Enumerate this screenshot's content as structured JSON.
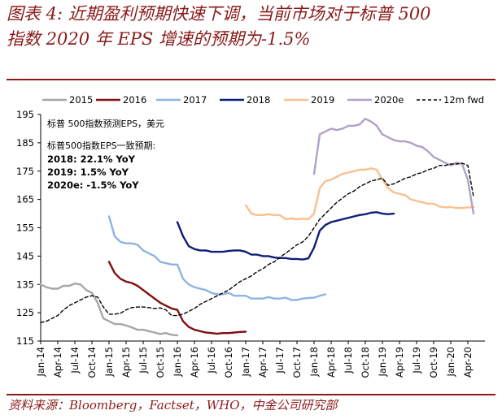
{
  "title": {
    "line1": "图表 4:  近期盈利预期快速下调，当前市场对于标普 500",
    "line2": "指数 2020 年 EPS 增速的预期为-1.5%"
  },
  "source": "资料来源：Bloomberg，Factset，WHO，中金公司研究部",
  "chart_data": {
    "type": "line",
    "title": "图表 4:  近期盈利预期快速下调，当前市场对于标普 500 指数 2020 年 EPS 增速的预期为-1.5%",
    "ylim": [
      115,
      195
    ],
    "yticks": [
      115,
      125,
      135,
      145,
      155,
      165,
      175,
      185,
      195
    ],
    "x_range_months": [
      0,
      78
    ],
    "x_ticks": [
      {
        "label": "Jan-14",
        "m": 0
      },
      {
        "label": "Apr-14",
        "m": 3
      },
      {
        "label": "Jul-14",
        "m": 6
      },
      {
        "label": "Oct-14",
        "m": 9
      },
      {
        "label": "Jan-15",
        "m": 12
      },
      {
        "label": "Apr-15",
        "m": 15
      },
      {
        "label": "Jul-15",
        "m": 18
      },
      {
        "label": "Oct-15",
        "m": 21
      },
      {
        "label": "Jan-16",
        "m": 24
      },
      {
        "label": "Apr-16",
        "m": 27
      },
      {
        "label": "Jul-16",
        "m": 30
      },
      {
        "label": "Oct-16",
        "m": 33
      },
      {
        "label": "Jan-17",
        "m": 36
      },
      {
        "label": "Apr-17",
        "m": 39
      },
      {
        "label": "Jul-17",
        "m": 42
      },
      {
        "label": "Oct-17",
        "m": 45
      },
      {
        "label": "Jan-18",
        "m": 48
      },
      {
        "label": "Apr-18",
        "m": 51
      },
      {
        "label": "Jul-18",
        "m": 54
      },
      {
        "label": "Oct-18",
        "m": 57
      },
      {
        "label": "Jan-19",
        "m": 60
      },
      {
        "label": "Apr-19",
        "m": 63
      },
      {
        "label": "Jul-19",
        "m": 66
      },
      {
        "label": "Oct-19",
        "m": 69
      },
      {
        "label": "Jan-20",
        "m": 72
      },
      {
        "label": "Apr-20",
        "m": 75
      }
    ],
    "annotations": {
      "unit_label": "标普 500指数预测EPS，美元",
      "consensus_header": "标普500指数EPS一致预期:",
      "lines": [
        "2018: 22.1% YoY",
        "2019: 1.5% YoY",
        "2020e: -1.5% YoY"
      ]
    },
    "series": [
      {
        "name": "2015",
        "color": "#A6A6A6",
        "dash": false,
        "points": [
          [
            0,
            135
          ],
          [
            1,
            134
          ],
          [
            2,
            133.5
          ],
          [
            3,
            133.5
          ],
          [
            4,
            134.5
          ],
          [
            5,
            134.5
          ],
          [
            6,
            135.3
          ],
          [
            7,
            135
          ],
          [
            8,
            133
          ],
          [
            9,
            132
          ],
          [
            10,
            128.5
          ],
          [
            11,
            123
          ],
          [
            12,
            122
          ],
          [
            13,
            121
          ],
          [
            14,
            121
          ],
          [
            15,
            120.5
          ],
          [
            16,
            119.8
          ],
          [
            17,
            119
          ],
          [
            18,
            119
          ],
          [
            19,
            118.5
          ],
          [
            20,
            118
          ],
          [
            21,
            117.5
          ],
          [
            22,
            117.8
          ],
          [
            23,
            117.2
          ],
          [
            24,
            117
          ]
        ]
      },
      {
        "name": "2016",
        "color": "#7F1010",
        "dash": false,
        "points": [
          [
            12,
            143
          ],
          [
            13,
            139
          ],
          [
            14,
            137
          ],
          [
            15,
            136
          ],
          [
            16,
            135.5
          ],
          [
            17,
            134.5
          ],
          [
            18,
            133
          ],
          [
            19,
            131.5
          ],
          [
            20,
            130
          ],
          [
            21,
            128.5
          ],
          [
            22,
            127.5
          ],
          [
            23,
            126.5
          ],
          [
            24,
            126
          ],
          [
            25,
            122
          ],
          [
            26,
            120
          ],
          [
            27,
            119
          ],
          [
            28,
            118.5
          ],
          [
            29,
            118
          ],
          [
            30,
            117.8
          ],
          [
            31,
            117.6
          ],
          [
            32,
            117.8
          ],
          [
            33,
            117.8
          ],
          [
            34,
            118
          ],
          [
            35,
            118.2
          ],
          [
            36,
            118.3
          ]
        ]
      },
      {
        "name": "2017",
        "color": "#8DB4E2",
        "dash": false,
        "points": [
          [
            12,
            159
          ],
          [
            13,
            152
          ],
          [
            14,
            150
          ],
          [
            15,
            149.5
          ],
          [
            16,
            149.5
          ],
          [
            17,
            149
          ],
          [
            18,
            147
          ],
          [
            19,
            146
          ],
          [
            20,
            145
          ],
          [
            21,
            143
          ],
          [
            22,
            142.5
          ],
          [
            23,
            142
          ],
          [
            24,
            142
          ],
          [
            25,
            137
          ],
          [
            26,
            135
          ],
          [
            27,
            134
          ],
          [
            28,
            133.5
          ],
          [
            29,
            133
          ],
          [
            30,
            132
          ],
          [
            31,
            131.5
          ],
          [
            32,
            131.5
          ],
          [
            33,
            132
          ],
          [
            34,
            131
          ],
          [
            35,
            131
          ],
          [
            36,
            131
          ],
          [
            37,
            130
          ],
          [
            38,
            130
          ],
          [
            39,
            130
          ],
          [
            40,
            130.5
          ],
          [
            41,
            130
          ],
          [
            42,
            130
          ],
          [
            43,
            130.3
          ],
          [
            44,
            129.5
          ],
          [
            45,
            129.5
          ],
          [
            46,
            130
          ],
          [
            47,
            130.2
          ],
          [
            48,
            130.3
          ],
          [
            49,
            131
          ],
          [
            50,
            131.5
          ]
        ]
      },
      {
        "name": "2018",
        "color": "#0E1E78",
        "dash": false,
        "points": [
          [
            24,
            157
          ],
          [
            25,
            152
          ],
          [
            26,
            148.5
          ],
          [
            27,
            147.5
          ],
          [
            28,
            147
          ],
          [
            29,
            147
          ],
          [
            30,
            146.5
          ],
          [
            31,
            146.5
          ],
          [
            32,
            146.5
          ],
          [
            33,
            146.8
          ],
          [
            34,
            147
          ],
          [
            35,
            147
          ],
          [
            36,
            146.5
          ],
          [
            37,
            145.5
          ],
          [
            38,
            145.5
          ],
          [
            39,
            145
          ],
          [
            40,
            145
          ],
          [
            41,
            144.5
          ],
          [
            42,
            144.3
          ],
          [
            43,
            144.3
          ],
          [
            44,
            144
          ],
          [
            45,
            144
          ],
          [
            46,
            143.8
          ],
          [
            47,
            144.2
          ],
          [
            48,
            148
          ],
          [
            49,
            154
          ],
          [
            50,
            156
          ],
          [
            51,
            157
          ],
          [
            52,
            157.5
          ],
          [
            53,
            158
          ],
          [
            54,
            158.5
          ],
          [
            55,
            159
          ],
          [
            56,
            159.5
          ],
          [
            57,
            159.8
          ],
          [
            58,
            160.3
          ],
          [
            59,
            160.5
          ],
          [
            60,
            160
          ],
          [
            61,
            159.8
          ],
          [
            62,
            160
          ]
        ]
      },
      {
        "name": "2019",
        "color": "#FAC090",
        "dash": false,
        "points": [
          [
            36,
            163
          ],
          [
            37,
            160
          ],
          [
            38,
            159.5
          ],
          [
            39,
            159.5
          ],
          [
            40,
            159.8
          ],
          [
            41,
            159.5
          ],
          [
            42,
            159.5
          ],
          [
            43,
            158
          ],
          [
            44,
            158.3
          ],
          [
            45,
            158
          ],
          [
            46,
            158.2
          ],
          [
            47,
            158
          ],
          [
            48,
            160
          ],
          [
            49,
            169
          ],
          [
            50,
            171.5
          ],
          [
            51,
            172
          ],
          [
            52,
            173
          ],
          [
            53,
            174
          ],
          [
            54,
            174.5
          ],
          [
            55,
            175
          ],
          [
            56,
            175.5
          ],
          [
            57,
            175.5
          ],
          [
            58,
            176
          ],
          [
            59,
            175.5
          ],
          [
            60,
            172
          ],
          [
            61,
            169
          ],
          [
            62,
            167.5
          ],
          [
            63,
            167
          ],
          [
            64,
            166.5
          ],
          [
            65,
            165
          ],
          [
            66,
            164.5
          ],
          [
            67,
            164
          ],
          [
            68,
            163.5
          ],
          [
            69,
            163.5
          ],
          [
            70,
            162.5
          ],
          [
            71,
            162.2
          ],
          [
            72,
            162.3
          ],
          [
            73,
            162
          ],
          [
            74,
            162
          ],
          [
            75,
            162.2
          ],
          [
            76,
            162.3
          ]
        ]
      },
      {
        "name": "2020e",
        "color": "#B1A0C7",
        "dash": false,
        "points": [
          [
            48,
            174
          ],
          [
            49,
            188
          ],
          [
            50,
            189
          ],
          [
            51,
            190
          ],
          [
            52,
            189.5
          ],
          [
            53,
            190
          ],
          [
            54,
            191
          ],
          [
            55,
            191
          ],
          [
            56,
            191.5
          ],
          [
            57,
            193.5
          ],
          [
            58,
            192.5
          ],
          [
            59,
            191
          ],
          [
            60,
            188
          ],
          [
            61,
            187
          ],
          [
            62,
            186
          ],
          [
            63,
            185.5
          ],
          [
            64,
            185.5
          ],
          [
            65,
            185
          ],
          [
            66,
            184
          ],
          [
            67,
            183.5
          ],
          [
            68,
            182
          ],
          [
            69,
            180
          ],
          [
            70,
            179
          ],
          [
            71,
            178
          ],
          [
            72,
            177
          ],
          [
            73,
            178
          ],
          [
            74,
            177.5
          ],
          [
            75,
            172
          ],
          [
            76,
            160
          ]
        ]
      },
      {
        "name": "12m fwd",
        "color": "#000000",
        "dash": true,
        "points": [
          [
            0,
            121.5
          ],
          [
            1,
            122
          ],
          [
            2,
            123
          ],
          [
            3,
            124
          ],
          [
            4,
            126
          ],
          [
            5,
            127.5
          ],
          [
            6,
            128.5
          ],
          [
            7,
            129.5
          ],
          [
            8,
            130.5
          ],
          [
            9,
            131
          ],
          [
            10,
            130.5
          ],
          [
            11,
            127
          ],
          [
            12,
            124.5
          ],
          [
            13,
            124.5
          ],
          [
            14,
            124.8
          ],
          [
            15,
            126
          ],
          [
            16,
            126.8
          ],
          [
            17,
            127
          ],
          [
            18,
            127
          ],
          [
            19,
            126.8
          ],
          [
            20,
            126.5
          ],
          [
            21,
            126.7
          ],
          [
            22,
            126
          ],
          [
            23,
            124
          ],
          [
            24,
            124
          ],
          [
            25,
            124.5
          ],
          [
            26,
            125.5
          ],
          [
            27,
            126.5
          ],
          [
            28,
            128
          ],
          [
            29,
            129
          ],
          [
            30,
            130
          ],
          [
            31,
            131
          ],
          [
            32,
            132
          ],
          [
            33,
            133
          ],
          [
            34,
            134.5
          ],
          [
            35,
            136
          ],
          [
            36,
            137
          ],
          [
            37,
            138
          ],
          [
            38,
            139.5
          ],
          [
            39,
            140.5
          ],
          [
            40,
            142
          ],
          [
            41,
            143
          ],
          [
            42,
            144.5
          ],
          [
            43,
            146
          ],
          [
            44,
            147.5
          ],
          [
            45,
            149
          ],
          [
            46,
            150
          ],
          [
            47,
            152
          ],
          [
            48,
            155
          ],
          [
            49,
            158
          ],
          [
            50,
            160
          ],
          [
            51,
            162
          ],
          [
            52,
            164
          ],
          [
            53,
            165.5
          ],
          [
            54,
            167
          ],
          [
            55,
            168
          ],
          [
            56,
            169.5
          ],
          [
            57,
            170.5
          ],
          [
            58,
            171.5
          ],
          [
            59,
            172
          ],
          [
            60,
            172.5
          ],
          [
            61,
            170
          ],
          [
            62,
            170.5
          ],
          [
            63,
            171.5
          ],
          [
            64,
            172.5
          ],
          [
            65,
            173
          ],
          [
            66,
            174
          ],
          [
            67,
            174.5
          ],
          [
            68,
            175.5
          ],
          [
            69,
            176
          ],
          [
            70,
            177
          ],
          [
            71,
            177
          ],
          [
            72,
            177.5
          ],
          [
            73,
            177.5
          ],
          [
            74,
            177.8
          ],
          [
            75,
            177
          ],
          [
            76,
            166
          ]
        ]
      }
    ]
  }
}
